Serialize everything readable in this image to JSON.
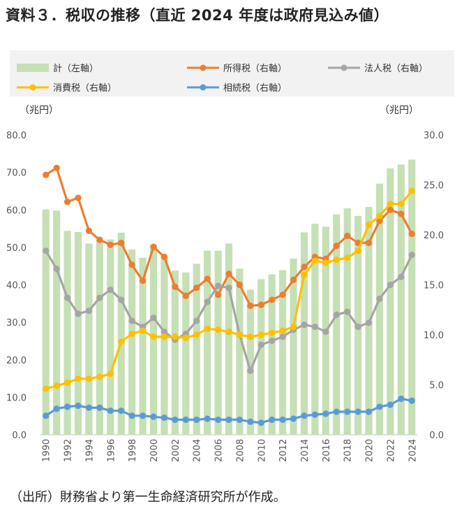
{
  "title": "資料３．税収の推移（直近 2024 年度は政府見込み値）",
  "source": "（出所）財務省より第一生命経済研究所が作成。",
  "chart_data": {
    "type": "bar+line",
    "left_axis": {
      "unit_label": "（兆円）",
      "min": 0,
      "max": 80,
      "step": 10,
      "ticks": [
        "0.0",
        "10.0",
        "20.0",
        "30.0",
        "40.0",
        "50.0",
        "60.0",
        "70.0",
        "80.0"
      ]
    },
    "right_axis": {
      "unit_label": "（兆円）",
      "min": 0,
      "max": 30,
      "step": 5,
      "ticks": [
        "0.0",
        "5.0",
        "10.0",
        "15.0",
        "20.0",
        "25.0",
        "30.0"
      ]
    },
    "x": [
      1990,
      1991,
      1992,
      1993,
      1994,
      1995,
      1996,
      1997,
      1998,
      1999,
      2000,
      2001,
      2002,
      2003,
      2004,
      2005,
      2006,
      2007,
      2008,
      2009,
      2010,
      2011,
      2012,
      2013,
      2014,
      2015,
      2016,
      2017,
      2018,
      2019,
      2020,
      2021,
      2022,
      2023,
      2024
    ],
    "x_tick_labels": [
      "1990",
      "1992",
      "1994",
      "1996",
      "1998",
      "2000",
      "2002",
      "2004",
      "2006",
      "2008",
      "2010",
      "2012",
      "2014",
      "2016",
      "2018",
      "2020",
      "2022",
      "2024"
    ],
    "legend": [
      {
        "name": "計（左軸）",
        "color": "#c5e0b4",
        "kind": "bar"
      },
      {
        "name": "所得税（右軸）",
        "color": "#ed7d31",
        "kind": "line"
      },
      {
        "name": "法人税（右軸）",
        "color": "#a5a5a5",
        "kind": "line"
      },
      {
        "name": "消費税（右軸）",
        "color": "#ffc000",
        "kind": "line"
      },
      {
        "name": "相続税（右軸）",
        "color": "#5b9bd5",
        "kind": "line"
      }
    ],
    "bars": {
      "name": "計（左軸）",
      "axis": "left",
      "color": "#c5e0b4",
      "values": [
        60.1,
        59.8,
        54.4,
        54.1,
        51.0,
        51.9,
        52.1,
        53.9,
        49.4,
        47.2,
        50.7,
        47.9,
        43.8,
        43.3,
        45.6,
        49.1,
        49.1,
        51.0,
        44.3,
        38.7,
        41.5,
        42.8,
        43.9,
        47.0,
        54.0,
        56.3,
        55.5,
        58.8,
        60.4,
        58.4,
        60.8,
        67.0,
        71.1,
        72.1,
        73.4
      ]
    },
    "series": [
      {
        "name": "所得税（右軸）",
        "axis": "right",
        "color": "#ed7d31",
        "values": [
          26.0,
          26.7,
          23.3,
          23.7,
          20.4,
          19.5,
          19.0,
          19.2,
          17.0,
          15.4,
          18.8,
          17.8,
          14.8,
          13.9,
          14.7,
          15.6,
          14.0,
          16.1,
          15.0,
          12.9,
          13.0,
          13.5,
          14.0,
          15.5,
          16.8,
          17.8,
          17.6,
          18.9,
          19.9,
          19.2,
          19.2,
          21.4,
          22.5,
          22.1,
          20.1
        ]
      },
      {
        "name": "法人税（右軸）",
        "axis": "right",
        "color": "#a5a5a5",
        "values": [
          18.4,
          16.6,
          13.7,
          12.1,
          12.4,
          13.7,
          14.5,
          13.5,
          11.4,
          10.8,
          11.7,
          10.3,
          9.5,
          10.1,
          11.4,
          13.3,
          14.9,
          14.7,
          10.0,
          6.4,
          9.0,
          9.4,
          9.8,
          10.5,
          11.0,
          10.8,
          10.3,
          12.0,
          12.3,
          10.8,
          11.2,
          13.6,
          15.0,
          15.8,
          18.0
        ]
      },
      {
        "name": "消費税（右軸）",
        "axis": "right",
        "color": "#ffc000",
        "values": [
          4.6,
          4.9,
          5.2,
          5.6,
          5.6,
          5.8,
          6.1,
          9.3,
          10.1,
          10.4,
          9.8,
          9.8,
          9.8,
          9.7,
          10.0,
          10.6,
          10.5,
          10.3,
          10.0,
          9.8,
          10.0,
          10.2,
          10.4,
          10.8,
          16.0,
          17.4,
          17.2,
          17.5,
          17.7,
          18.4,
          21.0,
          21.9,
          23.1,
          23.1,
          24.4
        ]
      },
      {
        "name": "相続税（右軸）",
        "axis": "right",
        "color": "#5b9bd5",
        "values": [
          1.9,
          2.6,
          2.8,
          2.9,
          2.7,
          2.7,
          2.4,
          2.4,
          1.9,
          1.9,
          1.8,
          1.7,
          1.5,
          1.5,
          1.5,
          1.6,
          1.5,
          1.5,
          1.5,
          1.3,
          1.2,
          1.5,
          1.5,
          1.6,
          1.9,
          2.0,
          2.1,
          2.3,
          2.3,
          2.3,
          2.3,
          2.8,
          3.0,
          3.6,
          3.4
        ]
      }
    ]
  }
}
